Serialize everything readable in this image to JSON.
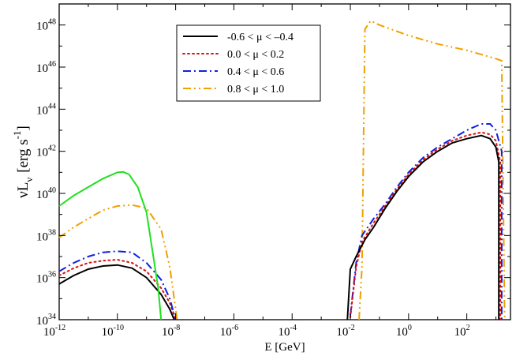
{
  "chart_data": {
    "type": "line",
    "title": "",
    "xlabel": "E [GeV]",
    "ylabel": {
      "main": "νL",
      "sub": "ν",
      "units": "[erg s",
      "unit_exp": "-1",
      "close": "]"
    },
    "x_scale": "log10",
    "y_scale": "log10",
    "xlim_log10": [
      -12,
      3.5
    ],
    "ylim_log10": [
      34,
      49
    ],
    "x_ticks": [
      {
        "base": "10",
        "exp": "-12",
        "v": -12
      },
      {
        "base": "10",
        "exp": "-10",
        "v": -10
      },
      {
        "base": "10",
        "exp": "-8",
        "v": -8
      },
      {
        "base": "10",
        "exp": "-6",
        "v": -6
      },
      {
        "base": "10",
        "exp": "-4",
        "v": -4
      },
      {
        "base": "10",
        "exp": "-2",
        "v": -2
      },
      {
        "base": "10",
        "exp": "0",
        "v": 0
      },
      {
        "base": "10",
        "exp": "2",
        "v": 2
      }
    ],
    "y_ticks": [
      {
        "base": "10",
        "exp": "34",
        "v": 34
      },
      {
        "base": "10",
        "exp": "36",
        "v": 36
      },
      {
        "base": "10",
        "exp": "38",
        "v": 38
      },
      {
        "base": "10",
        "exp": "40",
        "v": 40
      },
      {
        "base": "10",
        "exp": "42",
        "v": 42
      },
      {
        "base": "10",
        "exp": "44",
        "v": 44
      },
      {
        "base": "10",
        "exp": "46",
        "v": 46
      },
      {
        "base": "10",
        "exp": "48",
        "v": 48
      }
    ],
    "legend_position": "top-center",
    "series": [
      {
        "name": "-0.6 < μ < –0.4",
        "color": "#000000",
        "dash": "solid",
        "points_log10": [
          [
            -12,
            35.7
          ],
          [
            -11.5,
            36.1
          ],
          [
            -11,
            36.4
          ],
          [
            -10.5,
            36.55
          ],
          [
            -10,
            36.6
          ],
          [
            -9.5,
            36.45
          ],
          [
            -9,
            36.0
          ],
          [
            -8.5,
            35.2
          ],
          [
            -8.2,
            34.5
          ],
          [
            -8.05,
            34.0
          ]
        ]
      },
      {
        "name": "0.0 < μ < 0.2",
        "color": "#e01010",
        "dash": "dotted",
        "points_log10": [
          [
            -12,
            36.1
          ],
          [
            -11.5,
            36.45
          ],
          [
            -11,
            36.7
          ],
          [
            -10.5,
            36.8
          ],
          [
            -10,
            36.85
          ],
          [
            -9.5,
            36.7
          ],
          [
            -9,
            36.3
          ],
          [
            -8.5,
            35.5
          ],
          [
            -8.2,
            34.8
          ],
          [
            -8.0,
            34.0
          ]
        ]
      },
      {
        "name": "0.4 < μ < 0.6",
        "color": "#1020e0",
        "dash": "dash-dot",
        "points_log10": [
          [
            -12,
            36.3
          ],
          [
            -11.5,
            36.7
          ],
          [
            -11,
            37.0
          ],
          [
            -10.5,
            37.2
          ],
          [
            -10,
            37.25
          ],
          [
            -9.5,
            37.2
          ],
          [
            -9,
            36.7
          ],
          [
            -8.5,
            35.9
          ],
          [
            -8.2,
            35.0
          ],
          [
            -8.0,
            34.0
          ]
        ]
      },
      {
        "name": "0.8 < μ < 1.0",
        "color": "#f0a000",
        "dash": "dash-dot-dot",
        "points_log10": [
          [
            -12,
            37.9
          ],
          [
            -11.5,
            38.4
          ],
          [
            -11,
            38.8
          ],
          [
            -10.5,
            39.2
          ],
          [
            -10,
            39.4
          ],
          [
            -9.5,
            39.45
          ],
          [
            -9,
            39.3
          ],
          [
            -8.5,
            38.3
          ],
          [
            -8.2,
            36.5
          ],
          [
            -7.95,
            34.0
          ]
        ]
      },
      {
        "name": "",
        "color": "#20e020",
        "dash": "solid",
        "points_log10": [
          [
            -12,
            39.4
          ],
          [
            -11.5,
            39.9
          ],
          [
            -11,
            40.3
          ],
          [
            -10.5,
            40.7
          ],
          [
            -10,
            41.0
          ],
          [
            -9.8,
            41.02
          ],
          [
            -9.6,
            40.9
          ],
          [
            -9.3,
            40.3
          ],
          [
            -9.0,
            39.1
          ],
          [
            -8.8,
            37.3
          ],
          [
            -8.6,
            35.5
          ],
          [
            -8.5,
            34.0
          ]
        ]
      }
    ],
    "high_energy_series": [
      {
        "name_ref": 3,
        "color": "#f0a000",
        "dash": "dash-dot-dot",
        "points_log10": [
          [
            -1.7,
            34.0
          ],
          [
            -1.6,
            36.5
          ],
          [
            -1.5,
            47.8
          ],
          [
            -1.3,
            48.2
          ],
          [
            -1.0,
            48.0
          ],
          [
            0,
            47.5
          ],
          [
            1,
            47.1
          ],
          [
            2,
            46.8
          ],
          [
            3.0,
            46.4
          ],
          [
            3.2,
            46.3
          ],
          [
            3.3,
            34.0
          ]
        ]
      },
      {
        "name_ref": 2,
        "color": "#1020e0",
        "dash": "dash-dot",
        "points_log10": [
          [
            -2,
            34.2
          ],
          [
            -1.8,
            36.7
          ],
          [
            -1.6,
            38.0
          ],
          [
            -1.2,
            38.8
          ],
          [
            -0.8,
            39.5
          ],
          [
            -0.4,
            40.3
          ],
          [
            0,
            41.0
          ],
          [
            0.5,
            41.7
          ],
          [
            1,
            42.2
          ],
          [
            1.5,
            42.6
          ],
          [
            2,
            43.0
          ],
          [
            2.5,
            43.3
          ],
          [
            2.8,
            43.3
          ],
          [
            3.0,
            43.0
          ],
          [
            3.2,
            42.0
          ],
          [
            3.2,
            34.0
          ]
        ]
      },
      {
        "name_ref": 1,
        "color": "#e01010",
        "dash": "dotted",
        "points_log10": [
          [
            -2,
            34.1
          ],
          [
            -1.8,
            36.5
          ],
          [
            -1.6,
            37.7
          ],
          [
            -1.2,
            38.6
          ],
          [
            -0.8,
            39.4
          ],
          [
            -0.4,
            40.2
          ],
          [
            0,
            40.9
          ],
          [
            0.5,
            41.6
          ],
          [
            1,
            42.1
          ],
          [
            1.5,
            42.5
          ],
          [
            2,
            42.75
          ],
          [
            2.5,
            42.9
          ],
          [
            2.8,
            42.8
          ],
          [
            3.0,
            42.5
          ],
          [
            3.15,
            41.5
          ],
          [
            3.15,
            34.0
          ]
        ]
      },
      {
        "name_ref": 0,
        "color": "#000000",
        "dash": "solid",
        "points_log10": [
          [
            -2.1,
            34.0
          ],
          [
            -2.0,
            36.4
          ],
          [
            -1.8,
            37.0
          ],
          [
            -1.5,
            37.8
          ],
          [
            -1.2,
            38.4
          ],
          [
            -0.8,
            39.3
          ],
          [
            -0.4,
            40.1
          ],
          [
            0,
            40.8
          ],
          [
            0.5,
            41.5
          ],
          [
            1,
            42.0
          ],
          [
            1.5,
            42.4
          ],
          [
            2,
            42.6
          ],
          [
            2.5,
            42.75
          ],
          [
            2.8,
            42.6
          ],
          [
            3.0,
            42.2
          ],
          [
            3.1,
            41.5
          ],
          [
            3.1,
            34.0
          ]
        ]
      }
    ],
    "colors": {
      "axis": "#000000",
      "background": "#ffffff"
    }
  }
}
